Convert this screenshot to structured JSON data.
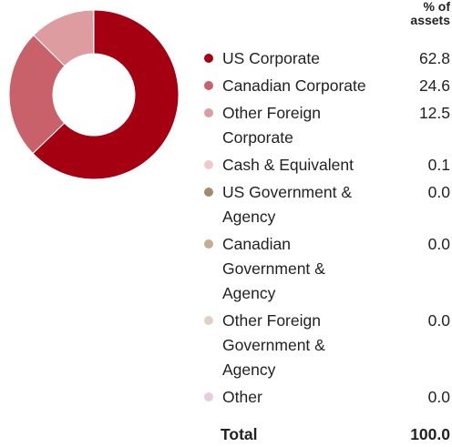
{
  "chart_data": {
    "type": "pie",
    "donut": true,
    "value_header": "% of assets",
    "categories": [
      "US Corporate",
      "Canadian Corporate",
      "Other Foreign Corporate",
      "Cash & Equivalent",
      "US Government & Agency",
      "Canadian Government & Agency",
      "Other Foreign Government & Agency",
      "Other"
    ],
    "values": [
      62.8,
      24.6,
      12.5,
      0.1,
      0,
      0,
      0,
      0
    ],
    "value_labels": [
      "62.8",
      "24.6",
      "12.5",
      "0.1",
      "0.0",
      "0.0",
      "0.0",
      "0.0"
    ],
    "colors": [
      "#a50012",
      "#c8616a",
      "#dd9ca0",
      "#edcacc",
      "#a38a6e",
      "#c4ad92",
      "#ded2c2",
      "#e9cbe2"
    ],
    "total_label": "Total",
    "total": {
      "value": 100,
      "label": "100.0"
    }
  }
}
